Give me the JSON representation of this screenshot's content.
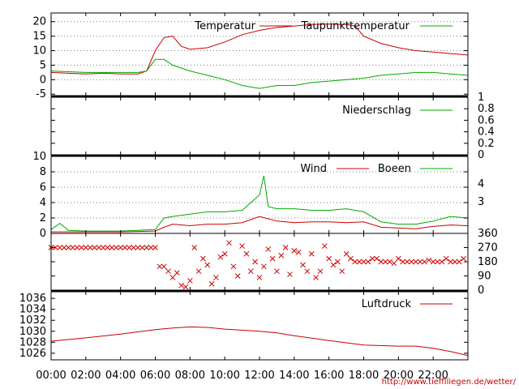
{
  "footer": {
    "url": "http://www.tiefflliegen.de/wetter/"
  },
  "colors": {
    "red": "#cc0000",
    "green": "#00aa00",
    "grid": "#7f7f7f"
  },
  "chart_data": [
    {
      "panel": "temperature",
      "type": "line",
      "ylim": [
        -5.5,
        23
      ],
      "yticks": [
        "20",
        "15",
        "10",
        "5",
        "0",
        "-5"
      ],
      "grid": true,
      "legend": "top-right",
      "series": [
        {
          "name": "Temperatur",
          "color": "#cc0000",
          "x": [
            "00:00",
            "01:00",
            "02:00",
            "03:00",
            "04:00",
            "05:00",
            "05:30",
            "06:00",
            "06:30",
            "07:00",
            "07:30",
            "08:00",
            "09:00",
            "10:00",
            "11:00",
            "12:00",
            "13:00",
            "14:00",
            "15:00",
            "16:00",
            "17:00",
            "17:30",
            "18:00",
            "19:00",
            "20:00",
            "21:00",
            "22:00",
            "23:00",
            "23:59"
          ],
          "values": [
            2.5,
            2.2,
            2.0,
            2.2,
            2.0,
            2.0,
            3,
            10,
            14.5,
            15,
            11.5,
            10.5,
            11,
            13,
            15.5,
            17,
            18,
            18.5,
            19,
            19.2,
            19,
            18.5,
            15,
            12.5,
            11,
            10,
            9.5,
            9,
            8.5
          ]
        },
        {
          "name": "Taupunkttemperatur",
          "color": "#00aa00",
          "x": [
            "00:00",
            "02:00",
            "04:00",
            "05:00",
            "05:30",
            "06:00",
            "06:30",
            "07:00",
            "08:00",
            "09:00",
            "10:00",
            "11:00",
            "12:00",
            "13:00",
            "14:00",
            "15:00",
            "16:00",
            "17:00",
            "18:00",
            "19:00",
            "20:00",
            "21:00",
            "22:00",
            "23:00",
            "23:59"
          ],
          "values": [
            3,
            2.5,
            2.5,
            2.5,
            3,
            7,
            7,
            5,
            3,
            1.5,
            0,
            -2,
            -3,
            -2,
            -2,
            -1,
            -0.5,
            0,
            0.5,
            1.5,
            2,
            2.5,
            2.5,
            2,
            1.5
          ]
        }
      ]
    },
    {
      "panel": "precipitation",
      "type": "line",
      "ylim": [
        0,
        1
      ],
      "yticks": [
        "1",
        "0.8",
        "0.6",
        "0.4",
        "0.2",
        "0"
      ],
      "series": [
        {
          "name": "Niederschlag",
          "color": "#00aa00",
          "x": [
            "00:00",
            "23:59"
          ],
          "values": [
            0,
            0
          ]
        }
      ]
    },
    {
      "panel": "wind",
      "type": "line",
      "ylim": [
        0,
        10
      ],
      "yticks": [
        "10",
        "8",
        "6",
        "4",
        "2",
        "0"
      ],
      "right_labels": [
        "4",
        "3"
      ],
      "grid": true,
      "series": [
        {
          "name": "Wind",
          "color": "#cc0000",
          "x": [
            "00:00",
            "02:00",
            "04:00",
            "06:00",
            "06:30",
            "07:00",
            "08:00",
            "09:00",
            "10:00",
            "11:00",
            "12:00",
            "13:00",
            "14:00",
            "15:00",
            "16:00",
            "17:00",
            "18:00",
            "19:00",
            "20:00",
            "21:00",
            "22:00",
            "23:00",
            "23:59"
          ],
          "values": [
            0.2,
            0.2,
            0.2,
            0.3,
            0.8,
            1.2,
            1,
            1.2,
            1.2,
            1.4,
            2.2,
            1.6,
            1.4,
            1.5,
            1.5,
            1.4,
            1.5,
            0.8,
            0.7,
            0.6,
            0.9,
            1.1,
            1
          ]
        },
        {
          "name": "Boeen",
          "color": "#00aa00",
          "x": [
            "00:00",
            "00:30",
            "01:00",
            "02:00",
            "04:00",
            "06:00",
            "06:30",
            "07:00",
            "08:00",
            "09:00",
            "10:00",
            "11:00",
            "12:00",
            "12:15",
            "12:30",
            "13:00",
            "14:00",
            "15:00",
            "16:00",
            "17:00",
            "18:00",
            "19:00",
            "20:00",
            "21:00",
            "22:00",
            "23:00",
            "23:59"
          ],
          "values": [
            0.5,
            1.3,
            0.4,
            0.3,
            0.3,
            0.5,
            2,
            2.2,
            2.5,
            2.8,
            2.8,
            3,
            5,
            7.5,
            3.5,
            3.2,
            3.2,
            3,
            3,
            3.2,
            2.8,
            1.5,
            1.2,
            1.2,
            1.6,
            2.2,
            2
          ]
        }
      ]
    },
    {
      "panel": "wind_direction",
      "type": "scatter",
      "ylim": [
        0,
        360
      ],
      "yticks": [
        "360",
        "270",
        "180",
        "90",
        "0"
      ],
      "series": [
        {
          "name": "",
          "color": "#cc0000",
          "marker": "x",
          "x": [
            "00:00",
            "00:15",
            "00:30",
            "00:45",
            "01:00",
            "01:15",
            "01:30",
            "01:45",
            "02:00",
            "02:15",
            "02:30",
            "02:45",
            "03:00",
            "03:15",
            "03:30",
            "03:45",
            "04:00",
            "04:15",
            "04:30",
            "04:45",
            "05:00",
            "05:15",
            "05:30",
            "05:45",
            "06:00",
            "06:15",
            "06:30",
            "06:45",
            "07:00",
            "07:15",
            "07:30",
            "07:45",
            "08:00",
            "08:15",
            "08:30",
            "08:45",
            "09:00",
            "09:15",
            "09:30",
            "09:45",
            "10:00",
            "10:15",
            "10:30",
            "10:45",
            "11:00",
            "11:15",
            "11:30",
            "11:45",
            "12:00",
            "12:15",
            "12:30",
            "12:45",
            "13:00",
            "13:15",
            "13:30",
            "13:45",
            "14:00",
            "14:15",
            "14:30",
            "14:45",
            "15:00",
            "15:15",
            "15:30",
            "15:45",
            "16:00",
            "16:15",
            "16:30",
            "16:45",
            "17:00",
            "17:15",
            "17:30",
            "17:45",
            "18:00",
            "18:15",
            "18:30",
            "18:45",
            "19:00",
            "19:15",
            "19:30",
            "19:45",
            "20:00",
            "20:15",
            "20:30",
            "20:45",
            "21:00",
            "21:15",
            "21:30",
            "21:45",
            "22:00",
            "22:15",
            "22:30",
            "22:45",
            "23:00",
            "23:15",
            "23:30",
            "23:45"
          ],
          "values": [
            270,
            270,
            270,
            270,
            270,
            270,
            270,
            270,
            270,
            270,
            270,
            270,
            270,
            270,
            270,
            270,
            270,
            270,
            270,
            270,
            270,
            270,
            270,
            270,
            270,
            150,
            150,
            120,
            80,
            110,
            30,
            20,
            60,
            270,
            120,
            200,
            160,
            40,
            80,
            210,
            230,
            300,
            150,
            90,
            280,
            230,
            120,
            180,
            80,
            150,
            260,
            200,
            120,
            220,
            270,
            100,
            250,
            240,
            160,
            120,
            230,
            80,
            120,
            280,
            200,
            160,
            180,
            120,
            230,
            200,
            180,
            180,
            180,
            180,
            200,
            200,
            180,
            180,
            180,
            170,
            200,
            180,
            180,
            180,
            180,
            180,
            180,
            190,
            180,
            180,
            180,
            200,
            180,
            180,
            180,
            200
          ]
        }
      ]
    },
    {
      "panel": "pressure",
      "type": "line",
      "ylim": [
        1024.8,
        1037.2
      ],
      "yticks": [
        "1036",
        "1034",
        "1032",
        "1030",
        "1028",
        "1026"
      ],
      "series": [
        {
          "name": "Luftdruck",
          "color": "#cc0000",
          "x": [
            "00:00",
            "02:00",
            "04:00",
            "06:00",
            "07:00",
            "08:00",
            "09:00",
            "10:00",
            "11:00",
            "12:00",
            "13:00",
            "14:00",
            "16:00",
            "18:00",
            "20:00",
            "21:00",
            "22:00",
            "23:00",
            "23:59"
          ],
          "values": [
            1028.2,
            1028.8,
            1029.5,
            1030.3,
            1030.6,
            1030.8,
            1030.7,
            1030.4,
            1030.2,
            1030.0,
            1029.7,
            1029.2,
            1028.3,
            1027.5,
            1027.3,
            1027.3,
            1026.9,
            1026.3,
            1025.6
          ]
        }
      ]
    }
  ],
  "x_axis": {
    "ticks": [
      "00:00",
      "02:00",
      "04:00",
      "06:00",
      "08:00",
      "10:00",
      "12:00",
      "14:00",
      "16:00",
      "18:00",
      "20:00",
      "22:00"
    ]
  }
}
